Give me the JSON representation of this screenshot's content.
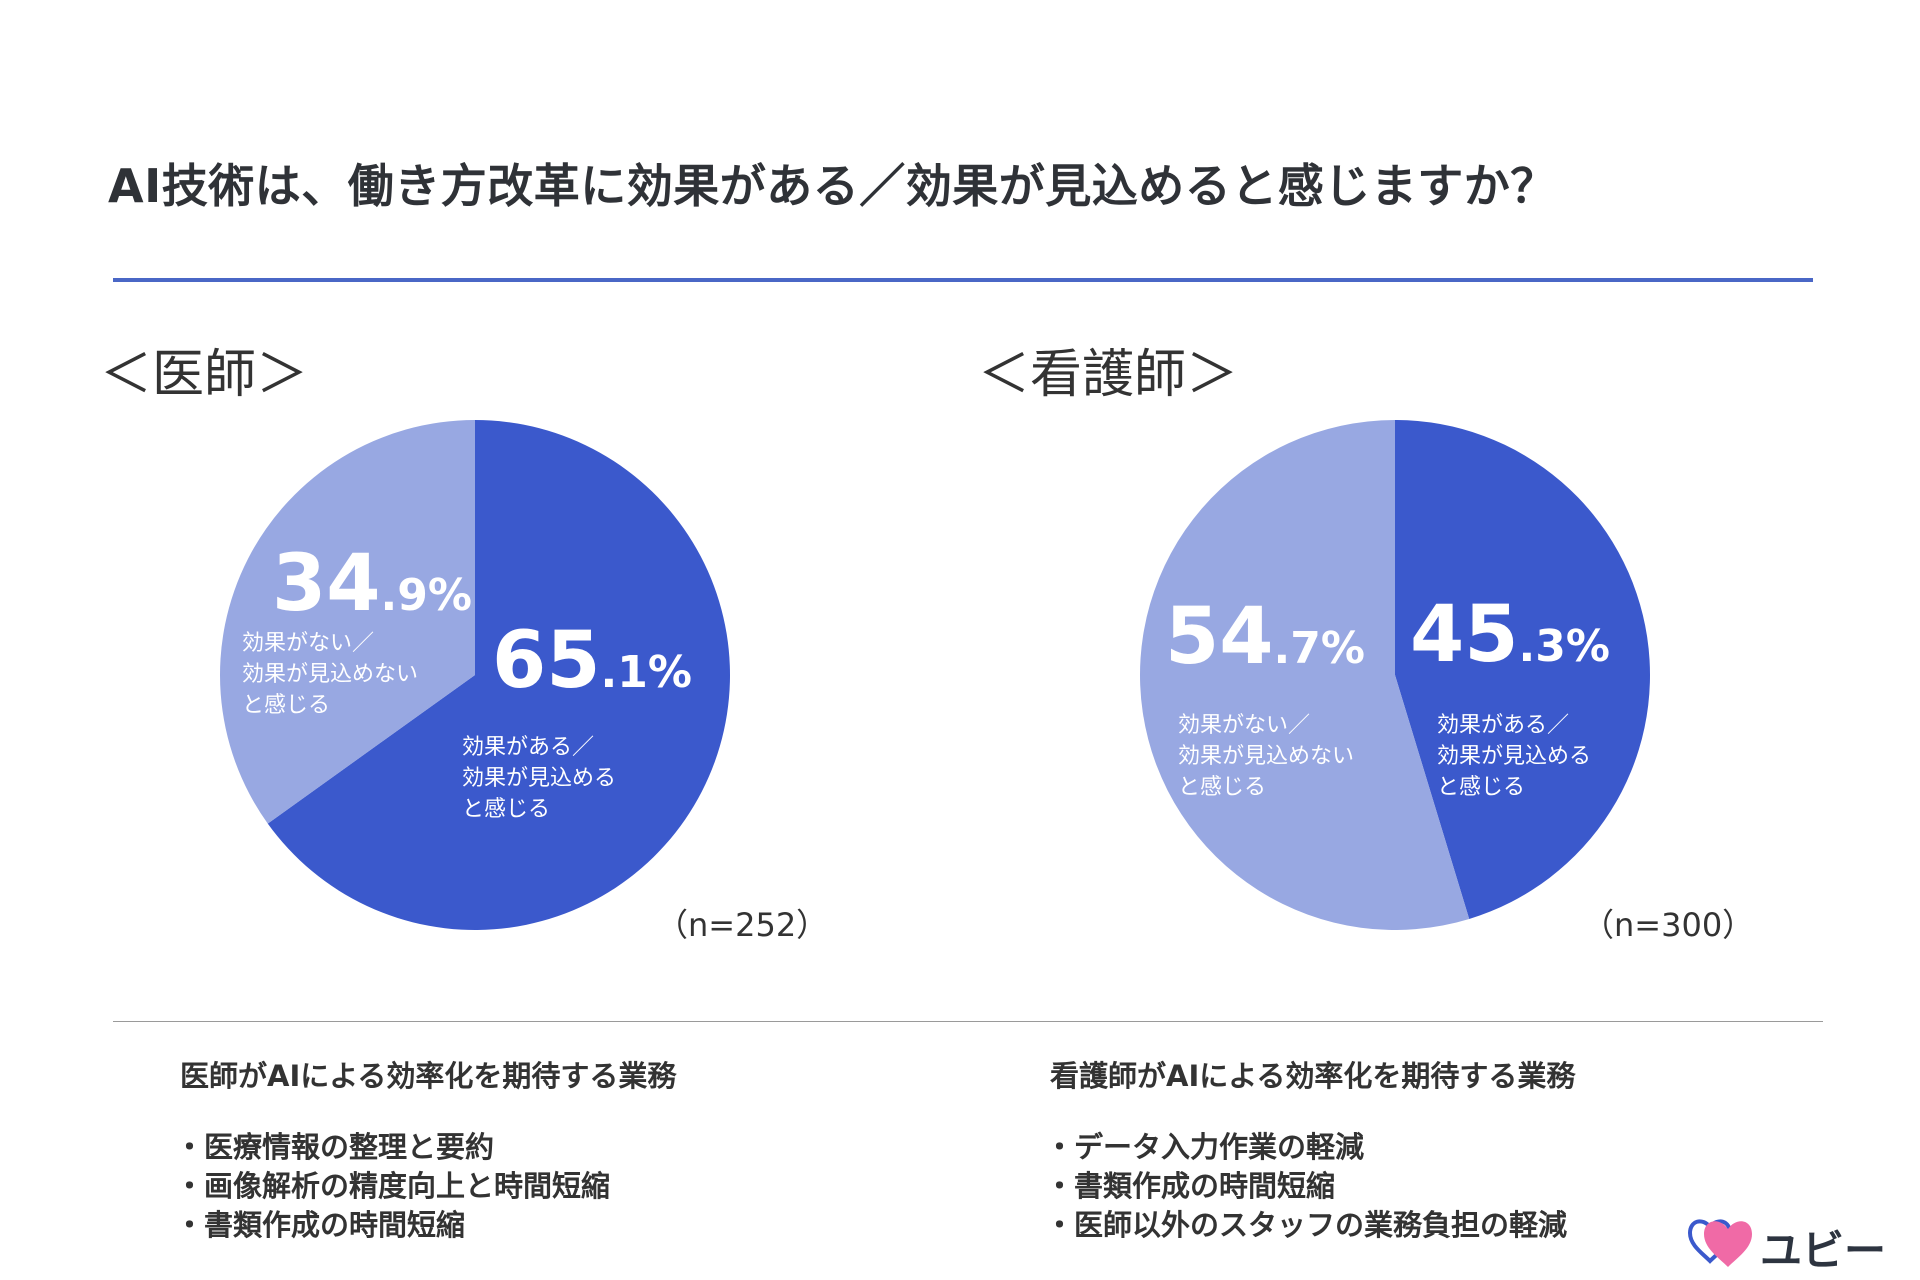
{
  "title": "AI技術は、働き方改革に効果がある／効果が見込めると感じますか？",
  "colors": {
    "accent": "#4a67c6",
    "dark_slice": "#3b59cc",
    "light_slice": "#98a8e2"
  },
  "chart_data": [
    {
      "type": "pie",
      "title": "＜医師＞",
      "n_label": "（n=252）",
      "slices": [
        {
          "value": 65.1,
          "int_part": "65",
          "dec_part": ".1%",
          "label": "効果がある／\n効果が見込める\nと感じる",
          "color": "#3b59cc"
        },
        {
          "value": 34.9,
          "int_part": "34",
          "dec_part": ".9%",
          "label": "効果がない／\n効果が見込めない\nと感じる",
          "color": "#98a8e2"
        }
      ]
    },
    {
      "type": "pie",
      "title": "＜看護師＞",
      "n_label": "（n=300）",
      "slices": [
        {
          "value": 45.3,
          "int_part": "45",
          "dec_part": ".3%",
          "label": "効果がある／\n効果が見込める\nと感じる",
          "color": "#3b59cc"
        },
        {
          "value": 54.7,
          "int_part": "54",
          "dec_part": ".7%",
          "label": "効果がない／\n効果が見込めない\nと感じる",
          "color": "#98a8e2"
        }
      ]
    }
  ],
  "expectations": {
    "doctor": {
      "heading": "医師がAIによる効率化を期待する業務",
      "items": [
        "医療情報の整理と要約",
        "画像解析の精度向上と時間短縮",
        "書類作成の時間短縮"
      ]
    },
    "nurse": {
      "heading": "看護師がAIによる効率化を期待する業務",
      "items": [
        "データ入力作業の軽減",
        "書類作成の時間短縮",
        "医師以外のスタッフの業務負担の軽減"
      ]
    }
  },
  "logo": {
    "text": "ユビー",
    "icon": "heart-logo-icon"
  }
}
